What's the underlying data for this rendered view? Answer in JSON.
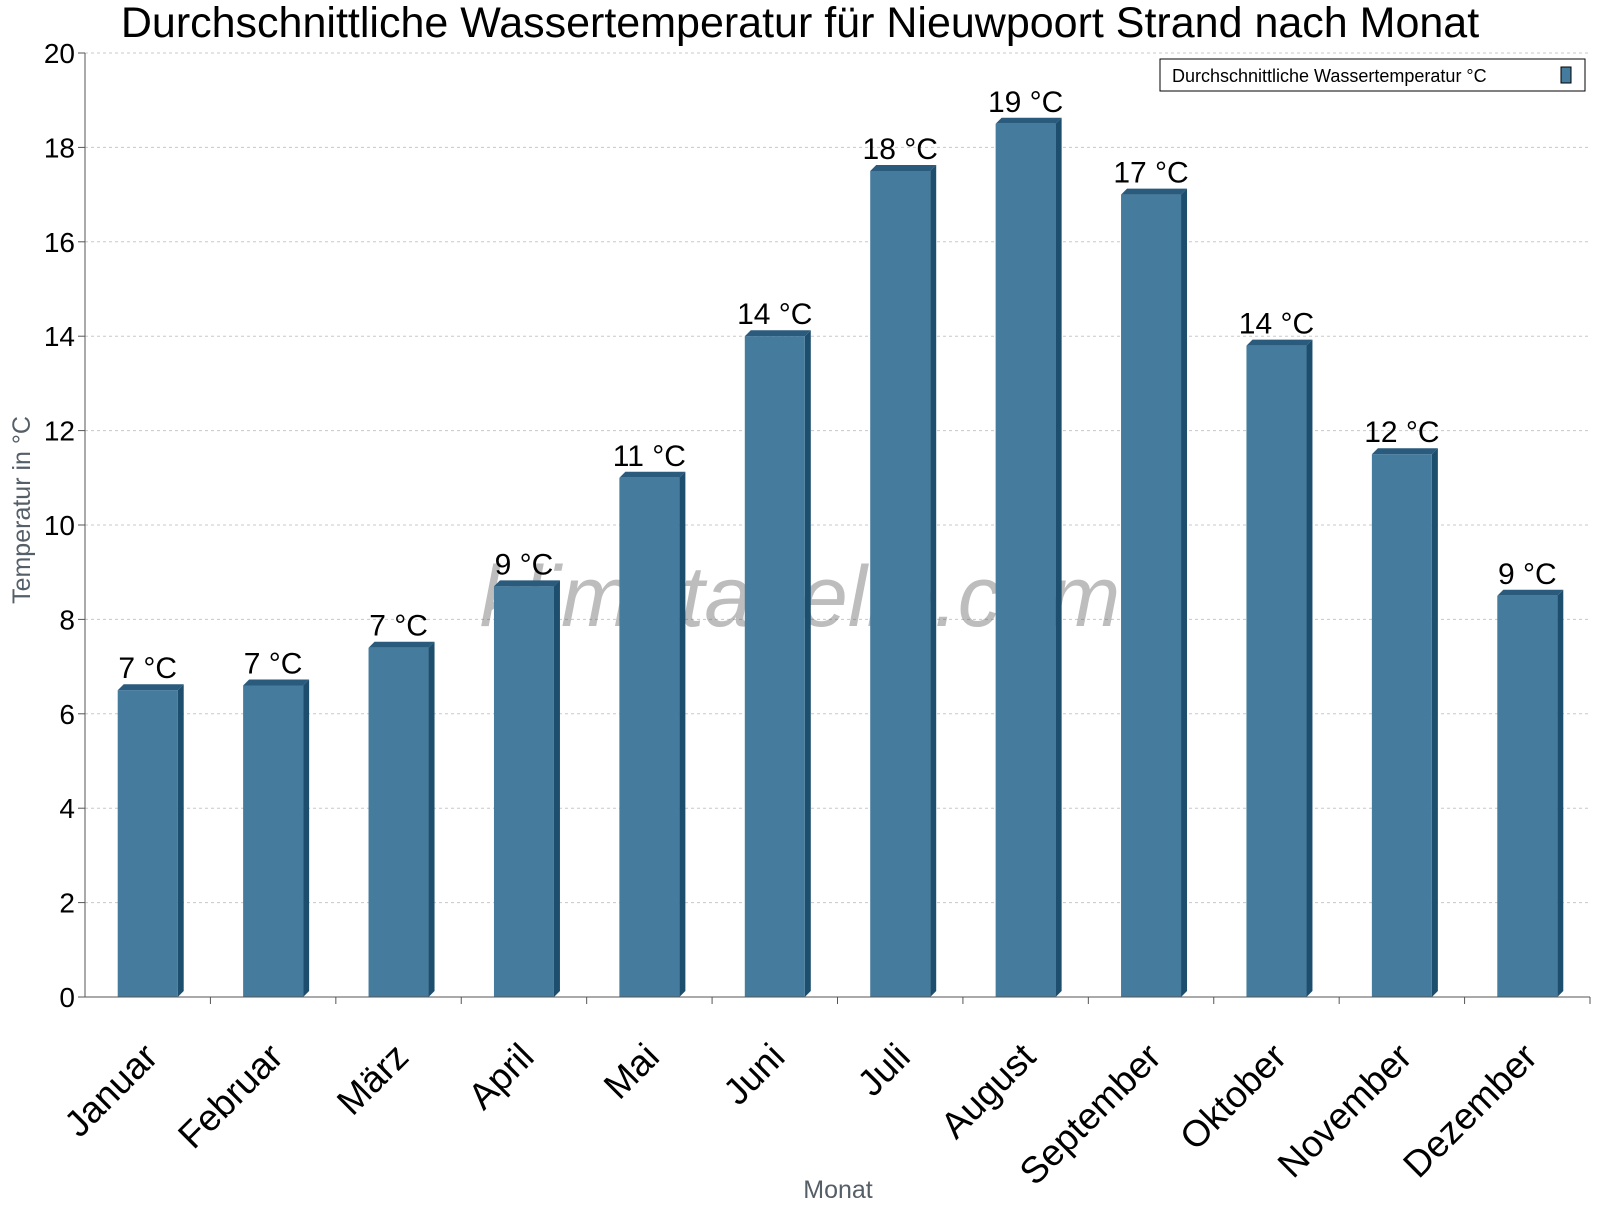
{
  "chart_data": {
    "type": "bar",
    "title": "Durchschnittliche Wassertemperatur für Nieuwpoort Strand nach Monat",
    "xlabel": "Monat",
    "ylabel": "Temperatur in °C",
    "ylim": [
      0,
      20
    ],
    "yticks": [
      "0",
      "2",
      "4",
      "6",
      "8",
      "10",
      "12",
      "14",
      "16",
      "18",
      "20"
    ],
    "grid": true,
    "legend_position": "top-right",
    "categories": [
      "Januar",
      "Februar",
      "März",
      "April",
      "Mai",
      "Juni",
      "Juli",
      "August",
      "September",
      "Oktober",
      "November",
      "Dezember"
    ],
    "series": [
      {
        "name": "Durchschnittliche Wassertemperatur °C",
        "color": "#457b9d",
        "values": [
          6.5,
          6.6,
          7.4,
          8.7,
          11.0,
          14.0,
          17.5,
          18.5,
          17.0,
          13.8,
          11.5,
          8.5
        ],
        "labels": [
          "7 °C",
          "7 °C",
          "7 °C",
          "9 °C",
          "11 °C",
          "14 °C",
          "18 °C",
          "19 °C",
          "17 °C",
          "14 °C",
          "12 °C",
          "9 °C"
        ]
      }
    ]
  },
  "watermark": "klimatabelle.com",
  "colors": {
    "bar_front": "#457b9d",
    "bar_side": "#1e4e6e",
    "bar_top": "#2a5a7c",
    "grid": "#c8c8c8",
    "axis": "#555555"
  }
}
